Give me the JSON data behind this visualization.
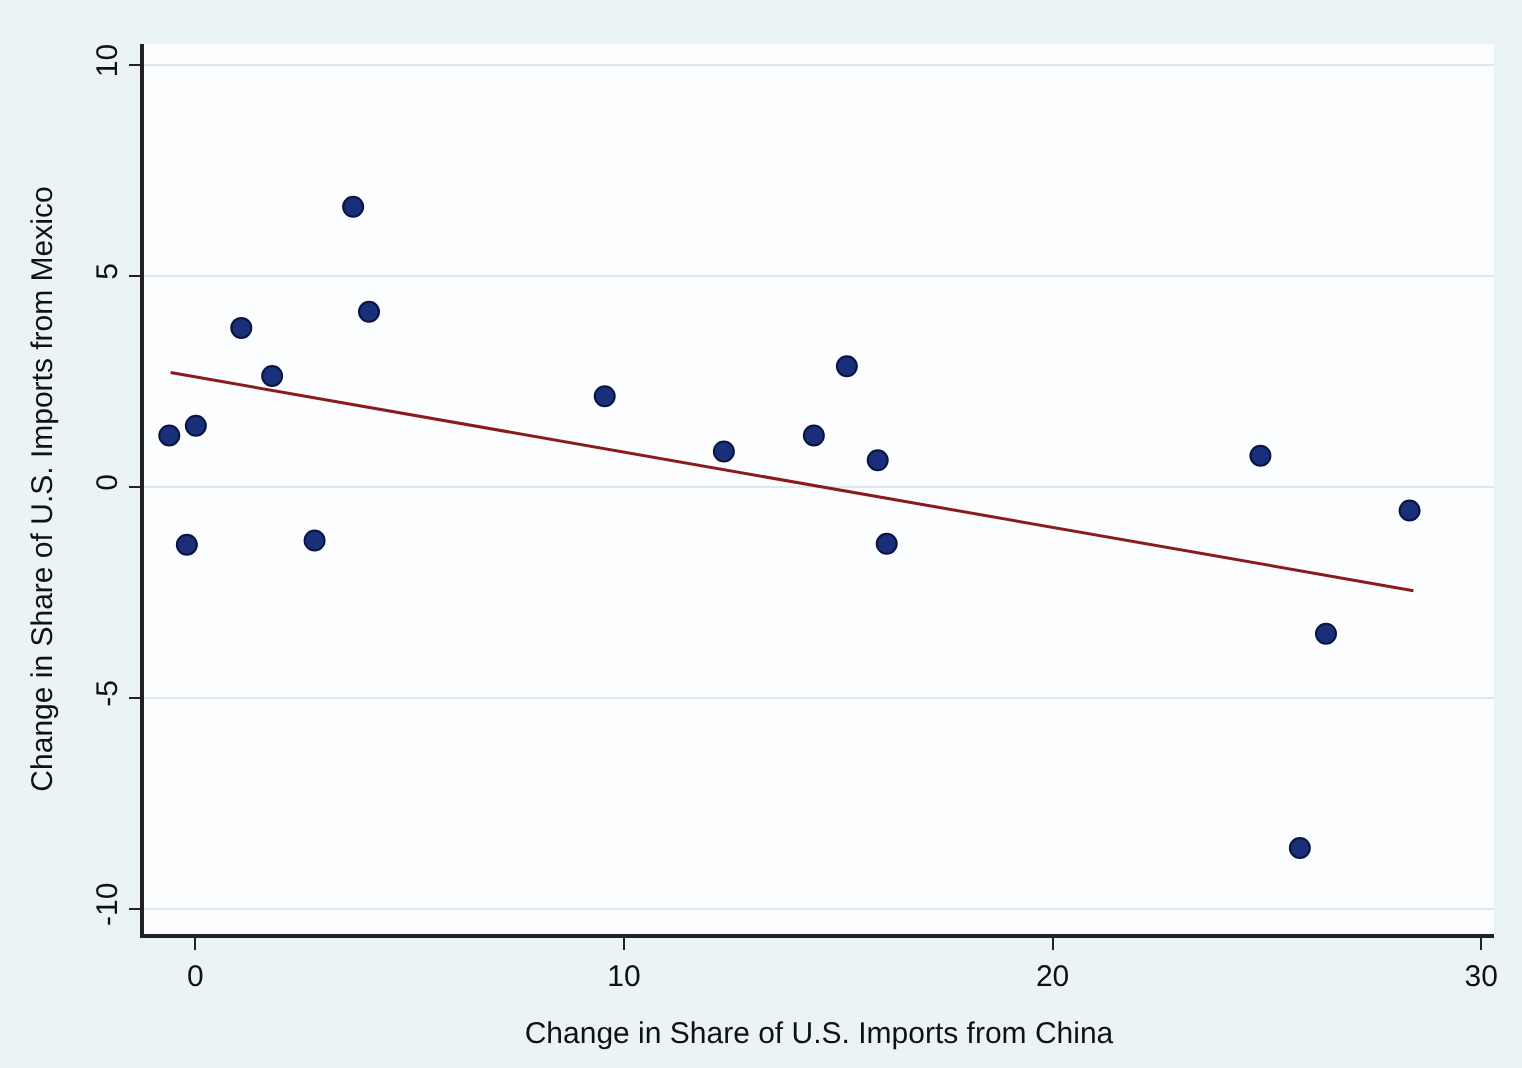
{
  "chart_data": {
    "type": "scatter",
    "xlabel": "Change in Share of U.S. Imports from China",
    "ylabel": "Change in Share of U.S. Imports from Mexico",
    "xlim": [
      -1.2,
      30.3
    ],
    "ylim": [
      -10.6,
      10.5
    ],
    "xticks": [
      0,
      10,
      20,
      30
    ],
    "yticks": [
      -10,
      -5,
      0,
      5,
      10
    ],
    "grid": "y",
    "marker": "circle",
    "series": [
      {
        "color": "#1a2f7a",
        "x": [
          -0.61,
          0.01,
          -0.2,
          1.07,
          1.79,
          2.78,
          3.68,
          4.05,
          9.55,
          12.33,
          14.43,
          15.2,
          15.92,
          16.13,
          24.85,
          28.33,
          26.38,
          25.77
        ],
        "values": [
          1.22,
          1.45,
          -1.37,
          3.77,
          2.63,
          -1.27,
          6.64,
          4.15,
          2.15,
          0.84,
          1.22,
          2.86,
          0.63,
          -1.35,
          0.74,
          -0.56,
          -3.48,
          -8.56
        ]
      },
      {
        "type": "line",
        "marker": "none",
        "color": "#8b1a1a",
        "x": [
          -0.58,
          28.42
        ],
        "values": [
          2.71,
          -2.46
        ]
      }
    ]
  }
}
